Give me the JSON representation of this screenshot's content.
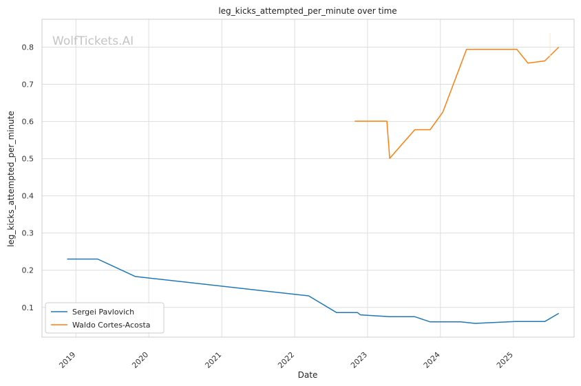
{
  "chart_data": {
    "type": "line",
    "title": "leg_kicks_attempted_per_minute over time",
    "xlabel": "Date",
    "ylabel": "leg_kicks_attempted_per_minute",
    "watermark": "WolfTickets.AI",
    "x_ticks": [
      "2019",
      "2020",
      "2021",
      "2022",
      "2023",
      "2024",
      "2025"
    ],
    "y_ticks": [
      "0.1",
      "0.2",
      "0.3",
      "0.4",
      "0.5",
      "0.6",
      "0.7",
      "0.8"
    ],
    "xlim": [
      "2018-07-15",
      "2025-11-01"
    ],
    "ylim": [
      0.02,
      0.875
    ],
    "grid": true,
    "legend_position": "lower-left",
    "series": [
      {
        "name": "Sergei Pavlovich",
        "color": "#1f77b4",
        "points": [
          [
            "2018-11-18",
            0.23
          ],
          [
            "2019-04-20",
            0.23
          ],
          [
            "2019-10-26",
            0.183
          ],
          [
            "2022-03-12",
            0.131
          ],
          [
            "2022-07-30",
            0.086
          ],
          [
            "2022-11-12",
            0.086
          ],
          [
            "2022-11-26",
            0.08
          ],
          [
            "2023-04-22",
            0.075
          ],
          [
            "2023-08-26",
            0.075
          ],
          [
            "2023-11-11",
            0.061
          ],
          [
            "2024-04-13",
            0.061
          ],
          [
            "2024-06-22",
            0.057
          ],
          [
            "2025-01-11",
            0.062
          ],
          [
            "2025-06-07",
            0.062
          ],
          [
            "2025-08-16",
            0.084
          ]
        ]
      },
      {
        "name": "Waldo Cortes-Acosta",
        "color": "#ff7f0e",
        "points": [
          [
            "2022-10-29",
            0.601
          ],
          [
            "2023-04-08",
            0.601
          ],
          [
            "2023-04-22",
            0.501
          ],
          [
            "2023-08-26",
            0.578
          ],
          [
            "2023-11-11",
            0.578
          ],
          [
            "2024-01-13",
            0.625
          ],
          [
            "2024-05-11",
            0.794
          ],
          [
            "2025-01-18",
            0.794
          ],
          [
            "2025-03-15",
            0.757
          ],
          [
            "2025-06-07",
            0.763
          ],
          [
            "2025-08-16",
            0.8
          ]
        ]
      }
    ]
  }
}
